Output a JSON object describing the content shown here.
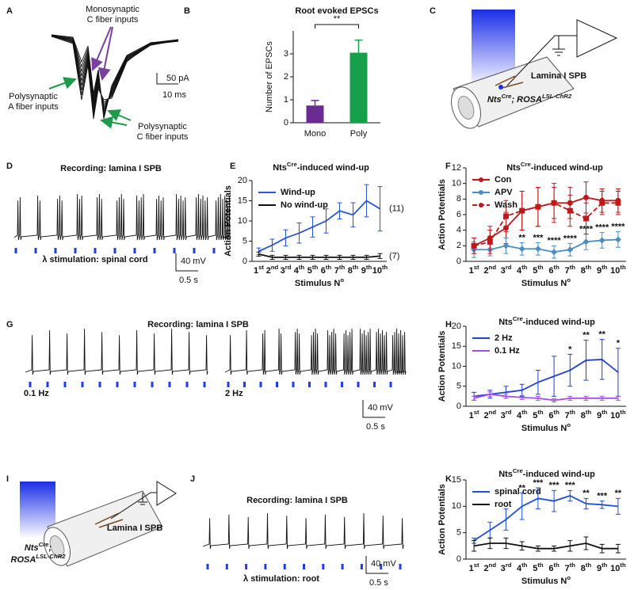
{
  "chart_data": [
    {
      "panel": "B",
      "type": "bar",
      "title": "Root evoked EPSCs",
      "ylabel": "Number of EPSCs",
      "categories": [
        "Mono",
        "Poly"
      ],
      "values": [
        0.75,
        3.05
      ],
      "errors": [
        0.22,
        0.55
      ],
      "colors": [
        "#6a2c91",
        "#17a04a"
      ],
      "ylim": [
        0,
        4
      ],
      "yticks": [
        0,
        1,
        2,
        3
      ],
      "significance": "**"
    },
    {
      "panel": "E",
      "type": "line",
      "title": [
        "Nts",
        "Cre",
        "-induced wind-up"
      ],
      "xlabel": [
        "Stimulus N",
        "o"
      ],
      "ylabel": "Action Potentials",
      "categories": [
        [
          "1",
          "st"
        ],
        [
          "2",
          "nd"
        ],
        [
          "3",
          "rd"
        ],
        [
          "4",
          "th"
        ],
        [
          "5",
          "th"
        ],
        [
          "6",
          "th"
        ],
        [
          "7",
          "th"
        ],
        [
          "8",
          "th"
        ],
        [
          "9",
          "th"
        ],
        [
          "10",
          "th"
        ]
      ],
      "ylim": [
        0,
        20
      ],
      "yticks": [
        0,
        5,
        10,
        15,
        20
      ],
      "legend": "upper left",
      "series": [
        {
          "name": "Wind-up",
          "color": "#2b55d9",
          "values": [
            2.5,
            4,
            5.8,
            7,
            8.5,
            10,
            12.5,
            11.5,
            15,
            13
          ],
          "errors": [
            0.8,
            1.5,
            2,
            2.5,
            2.5,
            3,
            2,
            3,
            4,
            5.5
          ],
          "label": "(11)"
        },
        {
          "name": "No wind-up",
          "color": "#111111",
          "values": [
            1.8,
            1,
            1,
            1,
            1,
            1,
            1,
            1,
            1,
            1.3
          ],
          "errors": [
            0.5,
            0.5,
            0.5,
            0.5,
            0.5,
            0.5,
            0.5,
            0.5,
            0.5,
            0.6
          ],
          "label": "(7)"
        }
      ]
    },
    {
      "panel": "F",
      "type": "line",
      "title": [
        "Nts",
        "Cre",
        "-induced wind-up"
      ],
      "xlabel": [
        "Stimulus N",
        "o"
      ],
      "ylabel": "Action Potentials",
      "categories": [
        [
          "1",
          "st"
        ],
        [
          "2",
          "nd"
        ],
        [
          "3",
          "rd"
        ],
        [
          "4",
          "th"
        ],
        [
          "5",
          "th"
        ],
        [
          "6",
          "th"
        ],
        [
          "7",
          "th"
        ],
        [
          "8",
          "th"
        ],
        [
          "9",
          "th"
        ],
        [
          "10",
          "th"
        ]
      ],
      "ylim": [
        0,
        12
      ],
      "yticks": [
        0,
        2,
        4,
        6,
        8,
        10,
        12
      ],
      "legend": "upper left",
      "series": [
        {
          "name": "Con",
          "color": "#c0171b",
          "marker": "circle",
          "values": [
            2,
            3,
            4.3,
            6.5,
            7,
            7.5,
            7.5,
            8.2,
            7.8,
            7.8
          ],
          "errors": [
            1,
            1.5,
            2,
            2.5,
            2.5,
            2.5,
            2,
            2,
            1.5,
            1.5
          ]
        },
        {
          "name": "APV",
          "color": "#4a8ec4",
          "marker": "diamond",
          "values": [
            1.5,
            1.5,
            2,
            1.6,
            1.6,
            1.2,
            1.5,
            2.5,
            2.7,
            2.8
          ],
          "errors": [
            1,
            0.8,
            1,
            0.8,
            0.8,
            0.8,
            0.8,
            1,
            1,
            1
          ],
          "significance": [
            null,
            null,
            null,
            "**",
            "***",
            "****",
            "****",
            "****",
            "****",
            "****"
          ]
        },
        {
          "name": "Wash",
          "color": "#c0171b",
          "marker": "square",
          "style": "dashed",
          "values": [
            2,
            2.5,
            5.8,
            6.5,
            7,
            7.5,
            6.5,
            5.5,
            7.5,
            7.5
          ],
          "errors": [
            1,
            1.5,
            2,
            2.5,
            2.5,
            2,
            2,
            2,
            1.5,
            1.5
          ]
        }
      ]
    },
    {
      "panel": "H",
      "type": "line",
      "title": [
        "Nts",
        "Cre",
        "-induced wind-up"
      ],
      "xlabel": [
        "Stimulus N",
        "o"
      ],
      "ylabel": "Action Potentials",
      "categories": [
        [
          "1",
          "st"
        ],
        [
          "2",
          "nd"
        ],
        [
          "3",
          "rd"
        ],
        [
          "4",
          "th"
        ],
        [
          "5",
          "th"
        ],
        [
          "6",
          "th"
        ],
        [
          "7",
          "th"
        ],
        [
          "8",
          "th"
        ],
        [
          "9",
          "th"
        ],
        [
          "10",
          "th"
        ]
      ],
      "ylim": [
        0,
        20
      ],
      "yticks": [
        0,
        5,
        10,
        15,
        20
      ],
      "legend": "upper left",
      "series": [
        {
          "name": "2 Hz",
          "color": "#2040d0",
          "values": [
            2.5,
            3,
            3.5,
            4,
            6,
            7.5,
            9,
            11.5,
            11.7,
            8.5
          ],
          "errors": [
            1,
            1,
            1.5,
            1.5,
            3,
            5,
            4,
            5,
            5,
            6
          ],
          "significance": [
            null,
            null,
            null,
            null,
            null,
            null,
            "*",
            "**",
            "**",
            "*"
          ]
        },
        {
          "name": "0.1 Hz",
          "color": "#a050e0",
          "values": [
            2,
            3,
            2.5,
            2.2,
            2,
            1.5,
            2,
            2,
            2,
            2
          ],
          "errors": [
            0.5,
            0.6,
            0.5,
            0.5,
            0.5,
            0.4,
            0.5,
            0.5,
            0.5,
            0.5
          ]
        }
      ]
    },
    {
      "panel": "K",
      "type": "line",
      "title": [
        "Nts",
        "Cre",
        "-induced wind-up"
      ],
      "xlabel": [
        "Stimulus N",
        "o"
      ],
      "ylabel": "Action Potentials",
      "categories": [
        [
          "1",
          "st"
        ],
        [
          "2",
          "nd"
        ],
        [
          "3",
          "rd"
        ],
        [
          "4",
          "th"
        ],
        [
          "5",
          "th"
        ],
        [
          "6",
          "th"
        ],
        [
          "7",
          "th"
        ],
        [
          "8",
          "th"
        ],
        [
          "9",
          "th"
        ],
        [
          "10",
          "th"
        ]
      ],
      "ylim": [
        0,
        15
      ],
      "yticks": [
        0,
        5,
        10,
        15
      ],
      "legend": "upper left",
      "series": [
        {
          "name": "spinal cord",
          "color": "#1e4fd8",
          "values": [
            3.5,
            5.5,
            7.5,
            10,
            11.5,
            11,
            12,
            10.5,
            10.3,
            10
          ],
          "errors": [
            0.5,
            1.5,
            2,
            2.5,
            2,
            2,
            1,
            1,
            0.7,
            1.5
          ],
          "significance": [
            null,
            null,
            null,
            "**",
            "***",
            "***",
            "***",
            "**",
            "***",
            "**"
          ]
        },
        {
          "name": "root",
          "color": "#111111",
          "values": [
            2.5,
            3,
            3,
            2.5,
            2,
            2,
            2.5,
            3,
            2,
            2
          ],
          "errors": [
            1,
            1,
            1,
            0.8,
            0.5,
            0.5,
            1,
            1.2,
            0.8,
            0.8
          ]
        }
      ]
    }
  ],
  "panels": {
    "A": {
      "letter": "A",
      "mono": [
        "Monosynaptic",
        "C fiber inputs"
      ],
      "polyA": [
        "Polysynaptic",
        "A fiber inputs"
      ],
      "polyC": [
        "Polysynaptic",
        "C fiber inputs"
      ],
      "scale": [
        "50 pA",
        "10 ms"
      ]
    },
    "C": {
      "letter": "C",
      "cell": "Lamina I SPB",
      "genotype": [
        "Nts",
        "Cre",
        "; ROSA",
        "LSL-ChR2"
      ]
    },
    "D": {
      "letter": "D",
      "title": "Recording: lamina I SPB",
      "stimulus": "λ stimulation: spinal cord",
      "scale": [
        "40 mV",
        "0.5 s"
      ]
    },
    "G": {
      "letter": "G",
      "title": "Recording: lamina I SPB",
      "rates": [
        "0.1 Hz",
        "2 Hz"
      ],
      "scale": [
        "40 mV",
        "0.5 s"
      ]
    },
    "I": {
      "letter": "I",
      "genotype": [
        [
          "Nts",
          "Cre",
          ";"
        ],
        [
          "ROSA",
          "LSL-ChR2"
        ]
      ],
      "cell": "Lamina I SPB"
    },
    "J": {
      "letter": "J",
      "title": "Recording: lamina I SPB",
      "stimulus": "λ stimulation: root",
      "scale": [
        "40 mV",
        "0.5 s"
      ]
    }
  }
}
